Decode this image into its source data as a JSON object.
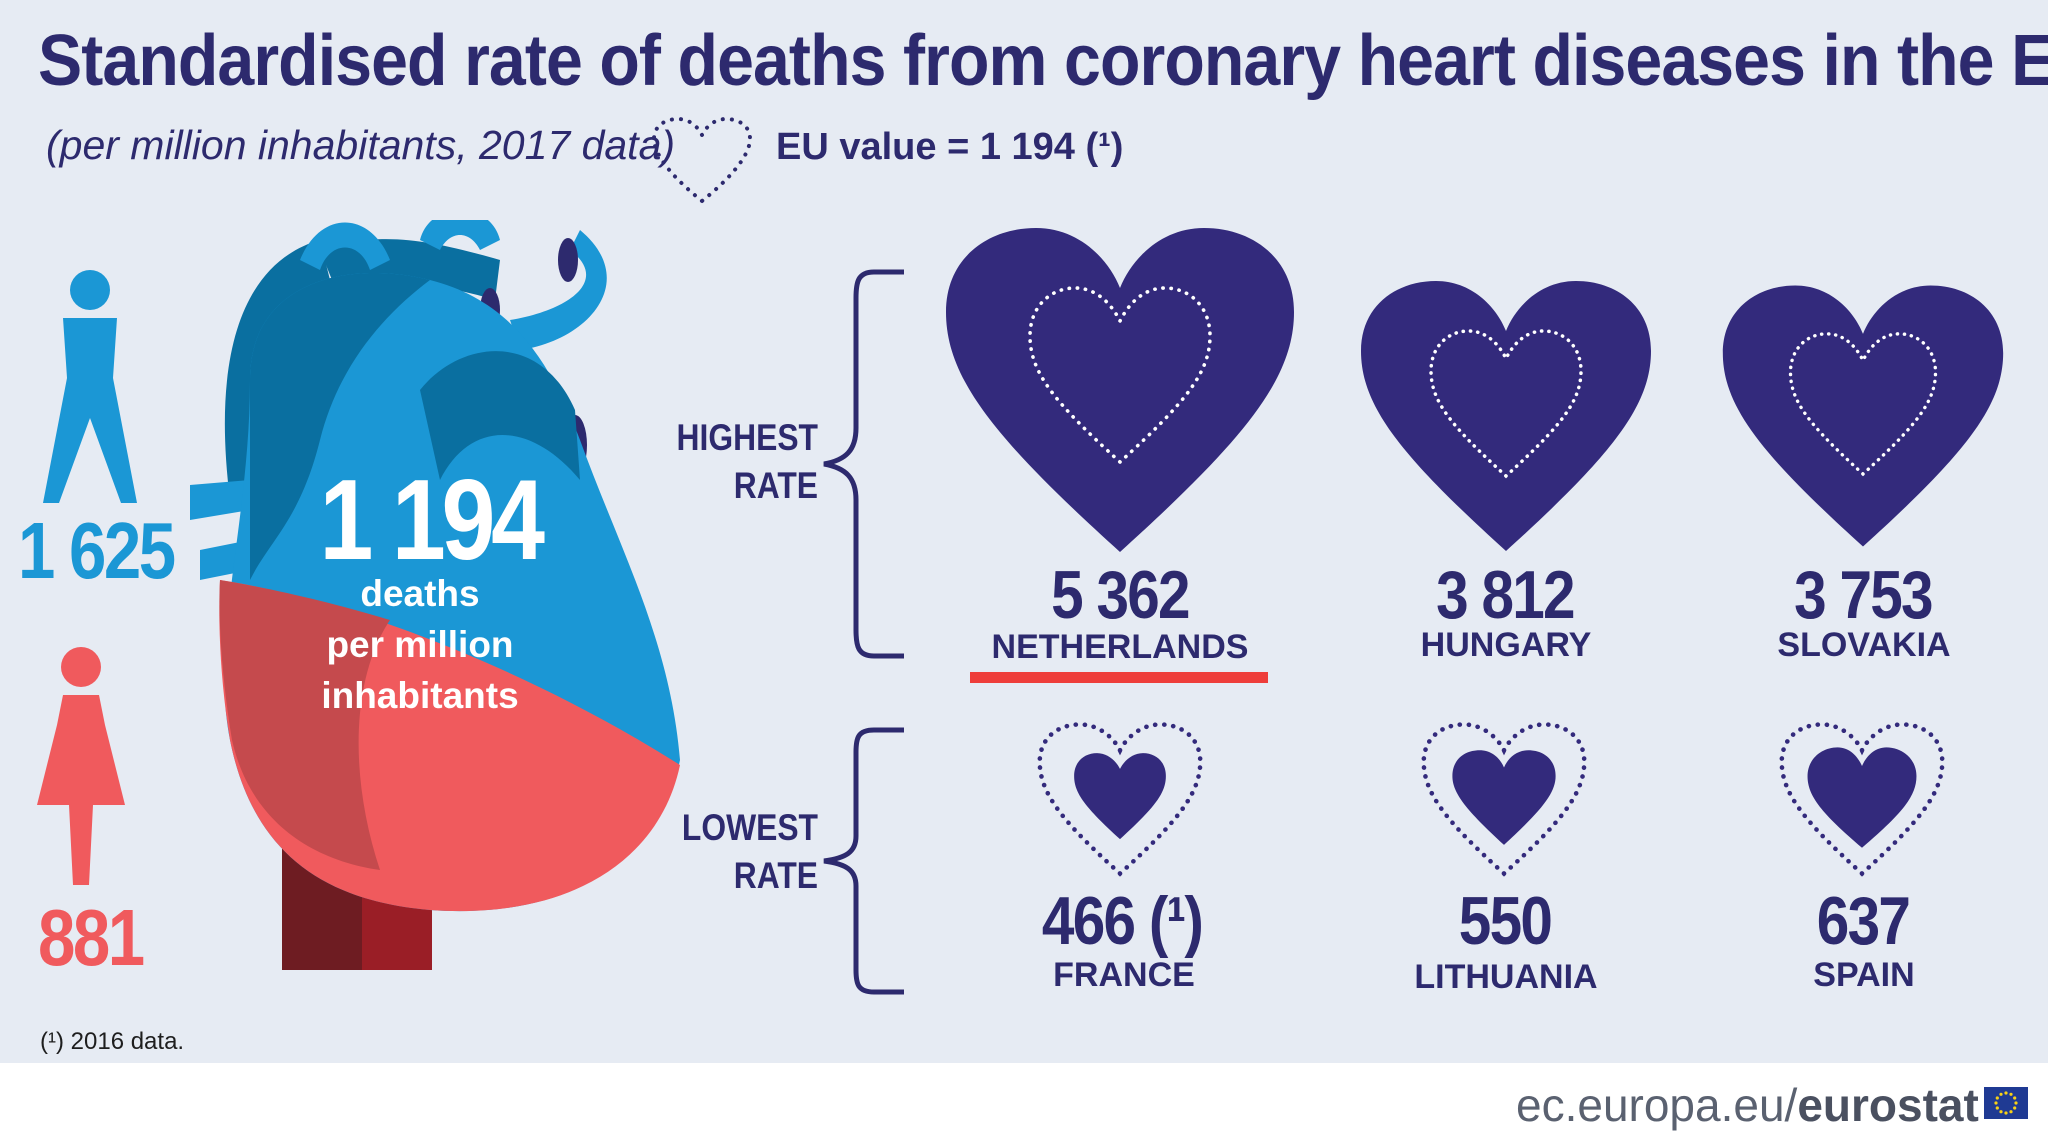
{
  "header": {
    "title": "Standardised rate of deaths from coronary heart diseases in the EU",
    "subtitle": "(per million inhabitants, 2017 data)",
    "eu_value_label": "EU value = 1 194 (¹)"
  },
  "gender": {
    "men_value": "1 625",
    "women_value": "881"
  },
  "heart": {
    "value": "1 194",
    "caption_line1": "deaths",
    "caption_line2": "per million",
    "caption_line3": "inhabitants"
  },
  "groups": {
    "highest_line1": "HIGHEST",
    "highest_line2": "RATE",
    "lowest_line1": "LOWEST",
    "lowest_line2": "RATE"
  },
  "chart_data": {
    "type": "table",
    "title": "Standardised rate of deaths from coronary heart diseases in the EU",
    "subtitle": "(per million inhabitants, 2017 data)",
    "eu_value": 1194,
    "men": 1625,
    "women": 881,
    "highest": [
      {
        "country": "NETHERLANDS",
        "value": 5362,
        "label": "5 362"
      },
      {
        "country": "HUNGARY",
        "value": 3812,
        "label": "3 812"
      },
      {
        "country": "SLOVAKIA",
        "value": 3753,
        "label": "3 753"
      }
    ],
    "lowest": [
      {
        "country": "FRANCE",
        "value": 466,
        "label": "466 (¹)"
      },
      {
        "country": "LITHUANIA",
        "value": 550,
        "label": "550"
      },
      {
        "country": "SPAIN",
        "value": 637,
        "label": "637"
      }
    ]
  },
  "colors": {
    "navy": "#2d2a6e",
    "heart_purple": "#332a7c",
    "men_blue": "#1b97d5",
    "women_red": "#f05a5d",
    "highlight_red": "#ee3d3a",
    "background": "#e6ebf3"
  },
  "footer": {
    "footnote": "(¹) 2016 data.",
    "url_prefix": "ec.europa.eu/",
    "url_brand": "eurostat"
  }
}
